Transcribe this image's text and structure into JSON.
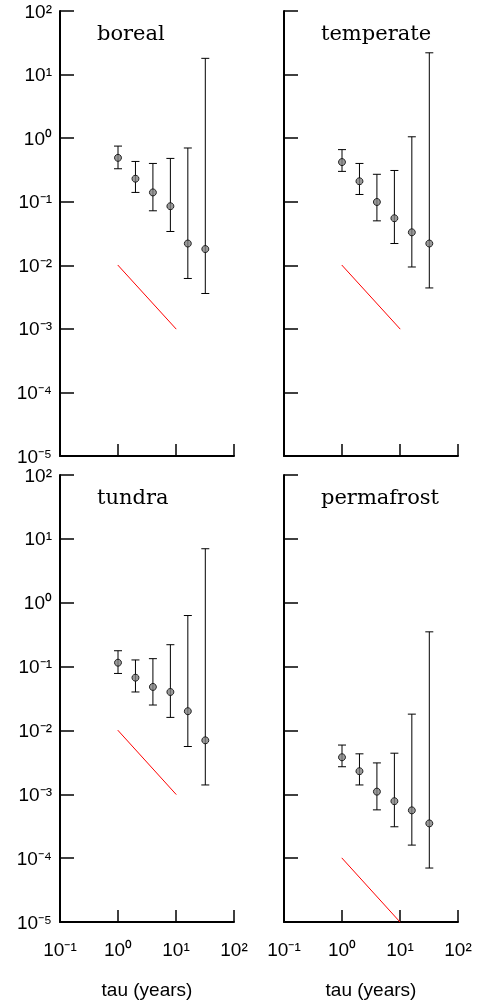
{
  "chart_data": [
    {
      "type": "scatter",
      "title": "boreal",
      "tick_labels": "y",
      "xlim": [
        0.1,
        100
      ],
      "ylim": [
        1e-05,
        100
      ],
      "log": "xy",
      "xticks": [
        {
          "value": 0.1,
          "label": null
        },
        {
          "value": 1,
          "label": null
        },
        {
          "value": 10,
          "label": null
        },
        {
          "value": 100,
          "label": null
        }
      ],
      "yticks": [
        {
          "value": 1e-05,
          "label": "10⁻⁵"
        },
        {
          "value": 0.0001,
          "label": "10⁻⁴"
        },
        {
          "value": 0.001,
          "label": "10⁻³"
        },
        {
          "value": 0.01,
          "label": "10⁻²"
        },
        {
          "value": 0.1,
          "label": "10⁻¹"
        },
        {
          "value": 1,
          "label": "10⁰"
        },
        {
          "value": 10,
          "label": "10¹"
        },
        {
          "value": 100,
          "label": "10²"
        }
      ],
      "series": [
        {
          "type": "scatter",
          "marker": "circle",
          "color": "#808080",
          "x": [
            1,
            2,
            4,
            8,
            16,
            32
          ],
          "values": [
            0.49,
            0.23,
            0.14,
            0.085,
            0.022,
            0.018
          ],
          "errors": [
            [
              0.33,
              0.75
            ],
            [
              0.14,
              0.43
            ],
            [
              0.072,
              0.4
            ],
            [
              0.034,
              0.48
            ],
            [
              0.0062,
              0.7
            ],
            [
              0.0036,
              18
            ]
          ]
        },
        {
          "type": "line",
          "marker": "none",
          "line_style": "solid",
          "color": "#ff0000",
          "x": [
            1,
            10
          ],
          "values": [
            0.01,
            0.001
          ]
        }
      ]
    },
    {
      "type": "scatter",
      "title": "temperate",
      "tick_labels": false,
      "xlim": [
        0.1,
        100
      ],
      "ylim": [
        1e-05,
        100
      ],
      "log": "xy",
      "xticks": [
        {
          "value": 0.1,
          "label": null
        },
        {
          "value": 1,
          "label": null
        },
        {
          "value": 10,
          "label": null
        },
        {
          "value": 100,
          "label": null
        }
      ],
      "yticks": [
        {
          "value": 1e-05,
          "label": null
        },
        {
          "value": 0.0001,
          "label": null
        },
        {
          "value": 0.001,
          "label": null
        },
        {
          "value": 0.01,
          "label": null
        },
        {
          "value": 0.1,
          "label": null
        },
        {
          "value": 1,
          "label": null
        },
        {
          "value": 10,
          "label": null
        },
        {
          "value": 100,
          "label": null
        }
      ],
      "series": [
        {
          "type": "scatter",
          "marker": "circle",
          "color": "#808080",
          "x": [
            1,
            2,
            4,
            8,
            16,
            32
          ],
          "values": [
            0.42,
            0.21,
            0.099,
            0.055,
            0.033,
            0.022
          ],
          "errors": [
            [
              0.3,
              0.66
            ],
            [
              0.13,
              0.4
            ],
            [
              0.05,
              0.27
            ],
            [
              0.022,
              0.31
            ],
            [
              0.0094,
              1.05
            ],
            [
              0.0044,
              22
            ]
          ]
        },
        {
          "type": "line",
          "marker": "none",
          "line_style": "solid",
          "color": "#ff0000",
          "x": [
            1,
            10
          ],
          "values": [
            0.01,
            0.001
          ]
        }
      ]
    },
    {
      "type": "scatter",
      "title": "tundra",
      "xlabel": "tau (years)",
      "xlim": [
        0.1,
        100
      ],
      "ylim": [
        1e-05,
        100
      ],
      "log": "xy",
      "xticks": [
        {
          "value": 0.1,
          "label": "10⁻¹"
        },
        {
          "value": 1,
          "label": "10⁰"
        },
        {
          "value": 10,
          "label": "10¹"
        },
        {
          "value": 100,
          "label": "10²"
        }
      ],
      "yticks": [
        {
          "value": 1e-05,
          "label": "10⁻⁵"
        },
        {
          "value": 0.0001,
          "label": "10⁻⁴"
        },
        {
          "value": 0.001,
          "label": "10⁻³"
        },
        {
          "value": 0.01,
          "label": "10⁻²"
        },
        {
          "value": 0.1,
          "label": "10⁻¹"
        },
        {
          "value": 1,
          "label": "10⁰"
        },
        {
          "value": 10,
          "label": "10¹"
        },
        {
          "value": 100,
          "label": "10²"
        }
      ],
      "series": [
        {
          "type": "scatter",
          "marker": "circle",
          "color": "#808080",
          "x": [
            1,
            2,
            4,
            8,
            16,
            32
          ],
          "values": [
            0.115,
            0.067,
            0.048,
            0.04,
            0.02,
            0.007
          ],
          "errors": [
            [
              0.078,
              0.177
            ],
            [
              0.04,
              0.127
            ],
            [
              0.025,
              0.133
            ],
            [
              0.016,
              0.22
            ],
            [
              0.0056,
              0.63
            ],
            [
              0.0014,
              7
            ]
          ]
        },
        {
          "type": "line",
          "marker": "none",
          "line_style": "solid",
          "color": "#ff0000",
          "x": [
            1,
            10
          ],
          "values": [
            0.01,
            0.001
          ]
        }
      ]
    },
    {
      "type": "scatter",
      "title": "permafrost",
      "xlabel": "tau (years)",
      "tick_labels": "x",
      "xlim": [
        0.1,
        100
      ],
      "ylim": [
        1e-05,
        100
      ],
      "log": "xy",
      "xticks": [
        {
          "value": 0.1,
          "label": "10⁻¹"
        },
        {
          "value": 1,
          "label": "10⁰"
        },
        {
          "value": 10,
          "label": "10¹"
        },
        {
          "value": 100,
          "label": "10²"
        }
      ],
      "yticks": [
        {
          "value": 1e-05,
          "label": null
        },
        {
          "value": 0.0001,
          "label": null
        },
        {
          "value": 0.001,
          "label": null
        },
        {
          "value": 0.01,
          "label": null
        },
        {
          "value": 0.1,
          "label": null
        },
        {
          "value": 1,
          "label": null
        },
        {
          "value": 10,
          "label": null
        },
        {
          "value": 100,
          "label": null
        }
      ],
      "series": [
        {
          "type": "scatter",
          "marker": "circle",
          "color": "#808080",
          "x": [
            1,
            2,
            4,
            8,
            16,
            32
          ],
          "values": [
            0.0038,
            0.0023,
            0.0011,
            0.00078,
            0.00056,
            0.00035
          ],
          "errors": [
            [
              0.0027,
              0.0059
            ],
            [
              0.0014,
              0.0043
            ],
            [
              0.00057,
              0.0031
            ],
            [
              0.00031,
              0.0044
            ],
            [
              0.00016,
              0.018
            ],
            [
              7e-05,
              0.35
            ]
          ]
        },
        {
          "type": "line",
          "marker": "none",
          "line_style": "solid",
          "color": "#ff0000",
          "x": [
            1,
            10
          ],
          "values": [
            0.0001,
            1e-05
          ]
        }
      ]
    }
  ]
}
